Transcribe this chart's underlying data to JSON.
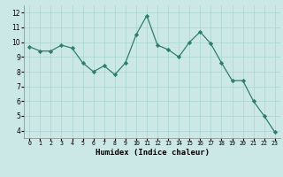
{
  "x": [
    0,
    1,
    2,
    3,
    4,
    5,
    6,
    7,
    8,
    9,
    10,
    11,
    12,
    13,
    14,
    15,
    16,
    17,
    18,
    19,
    20,
    21,
    22,
    23
  ],
  "y": [
    9.7,
    9.4,
    9.4,
    9.8,
    9.6,
    8.6,
    8.0,
    8.4,
    7.8,
    8.6,
    10.5,
    11.8,
    9.8,
    9.5,
    9.0,
    10.0,
    10.7,
    9.9,
    8.6,
    7.4,
    7.4,
    6.0,
    5.0,
    3.9
  ],
  "xlabel": "Humidex (Indice chaleur)",
  "ylim": [
    3.5,
    12.5
  ],
  "xlim": [
    -0.5,
    23.5
  ],
  "yticks": [
    4,
    5,
    6,
    7,
    8,
    9,
    10,
    11,
    12
  ],
  "line_color": "#2e7d6e",
  "marker": "D",
  "marker_size": 2.2,
  "bg_color": "#cce8e6",
  "grid_color": "#aad4d0",
  "fig_bg": "#cce8e6"
}
